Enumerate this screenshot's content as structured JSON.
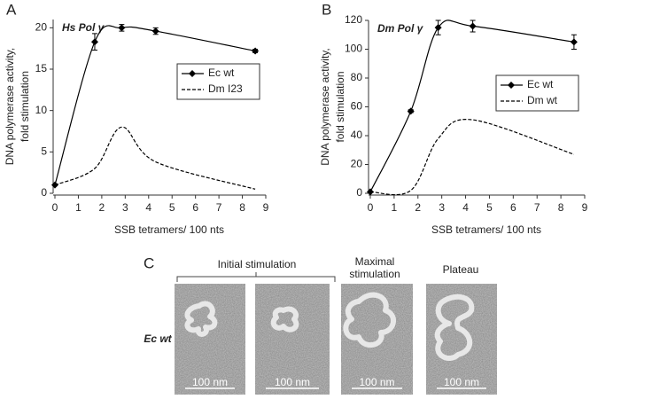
{
  "chart_data": [
    {
      "type": "line",
      "panel": "A",
      "title": "Hs Pol γ",
      "ylabel": [
        "DNA polymerase activity,",
        "fold stimulation"
      ],
      "xlabel": "SSB tetramers/ 100 nts",
      "x": [
        0,
        1.7,
        2.85,
        4.3,
        8.55
      ],
      "xlim": [
        0,
        9
      ],
      "xticks": [
        0,
        1,
        2,
        3,
        4,
        5,
        6,
        7,
        8,
        9
      ],
      "ylim": [
        0,
        21
      ],
      "yticks": [
        0,
        5,
        10,
        15,
        20
      ],
      "series": [
        {
          "name": "Ec wt",
          "color": "#000000",
          "style": "solid",
          "marker": "diamond",
          "values": [
            1,
            18.3,
            20,
            19.6,
            17.2
          ],
          "errors": [
            0,
            1,
            0.4,
            0.4,
            0.2
          ]
        },
        {
          "name": "Dm I23",
          "color": "#000000",
          "style": "dashed",
          "values": [
            1,
            3,
            8,
            3.8,
            0.5
          ]
        }
      ]
    },
    {
      "type": "line",
      "panel": "B",
      "title": "Dm Pol γ",
      "ylabel": [
        "DNA polymerase activity,",
        "fold stimulation"
      ],
      "xlabel": "SSB tetramers/ 100 nts",
      "x": [
        0,
        1.7,
        2.85,
        4.3,
        8.55
      ],
      "xlim": [
        0,
        9
      ],
      "xticks": [
        0,
        1,
        2,
        3,
        4,
        5,
        6,
        7,
        8,
        9
      ],
      "ylim": [
        0,
        120
      ],
      "yticks": [
        0,
        20,
        40,
        60,
        80,
        100,
        120
      ],
      "series": [
        {
          "name": "Ec wt",
          "color": "#000000",
          "style": "solid",
          "marker": "diamond",
          "values": [
            1,
            57,
            115,
            116,
            105
          ],
          "errors": [
            0,
            1,
            5,
            4,
            5
          ]
        },
        {
          "name": "Dm wt",
          "color": "#000000",
          "style": "dashed",
          "values": [
            1,
            2,
            38,
            51,
            27
          ]
        }
      ]
    }
  ],
  "panel_c": {
    "label": "C",
    "row_label": "Ec wt",
    "group_label": "Initial stimulation",
    "image_titles": [
      [
        "Maximal",
        "stimulation"
      ],
      [
        "Plateau"
      ]
    ],
    "scale_bars": [
      "100 nm",
      "100 nm",
      "100 nm",
      "100 nm"
    ]
  }
}
